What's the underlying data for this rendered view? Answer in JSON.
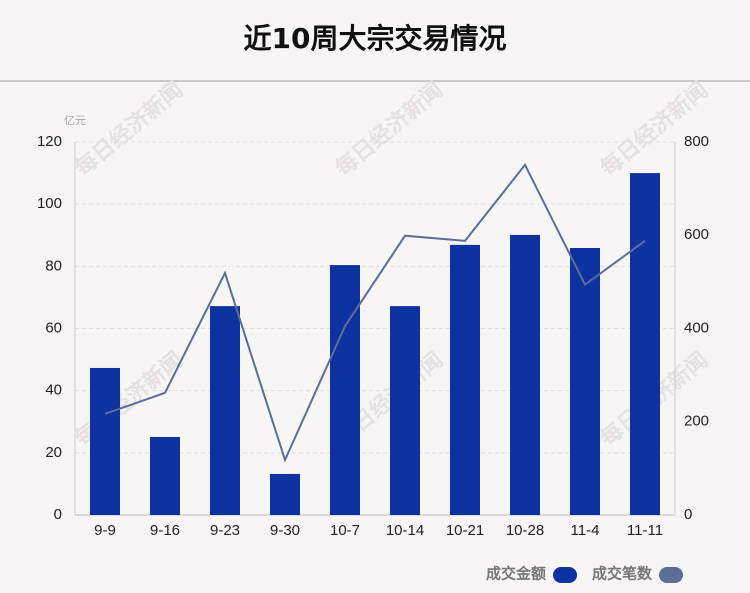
{
  "chart_data": {
    "type": "bar-line",
    "title": "近10周大宗交易情况",
    "y_unit": "亿元",
    "watermark": "每日经济新闻",
    "categories": [
      "9-9",
      "9-16",
      "9-23",
      "9-30",
      "10-7",
      "10-14",
      "10-21",
      "10-28",
      "11-4",
      "11-11"
    ],
    "series": [
      {
        "name": "成交金额",
        "type": "bar",
        "color": "#0e33a0",
        "values": [
          47.3,
          25.1,
          67.2,
          13.2,
          80.4,
          67.2,
          86.9,
          90.1,
          85.9,
          110
        ]
      },
      {
        "name": "成交笔数",
        "type": "line",
        "axis": "y2",
        "color": "#5a6e96",
        "values": [
          217,
          262,
          519,
          118,
          405,
          599,
          588,
          751,
          494,
          588
        ]
      }
    ],
    "ylim": [
      0,
      120
    ],
    "yticks": [
      0,
      20,
      40,
      60,
      80,
      100,
      120
    ],
    "y2lim": [
      0,
      800
    ],
    "y2ticks": [
      0,
      200,
      400,
      600,
      800
    ],
    "grid": true
  }
}
